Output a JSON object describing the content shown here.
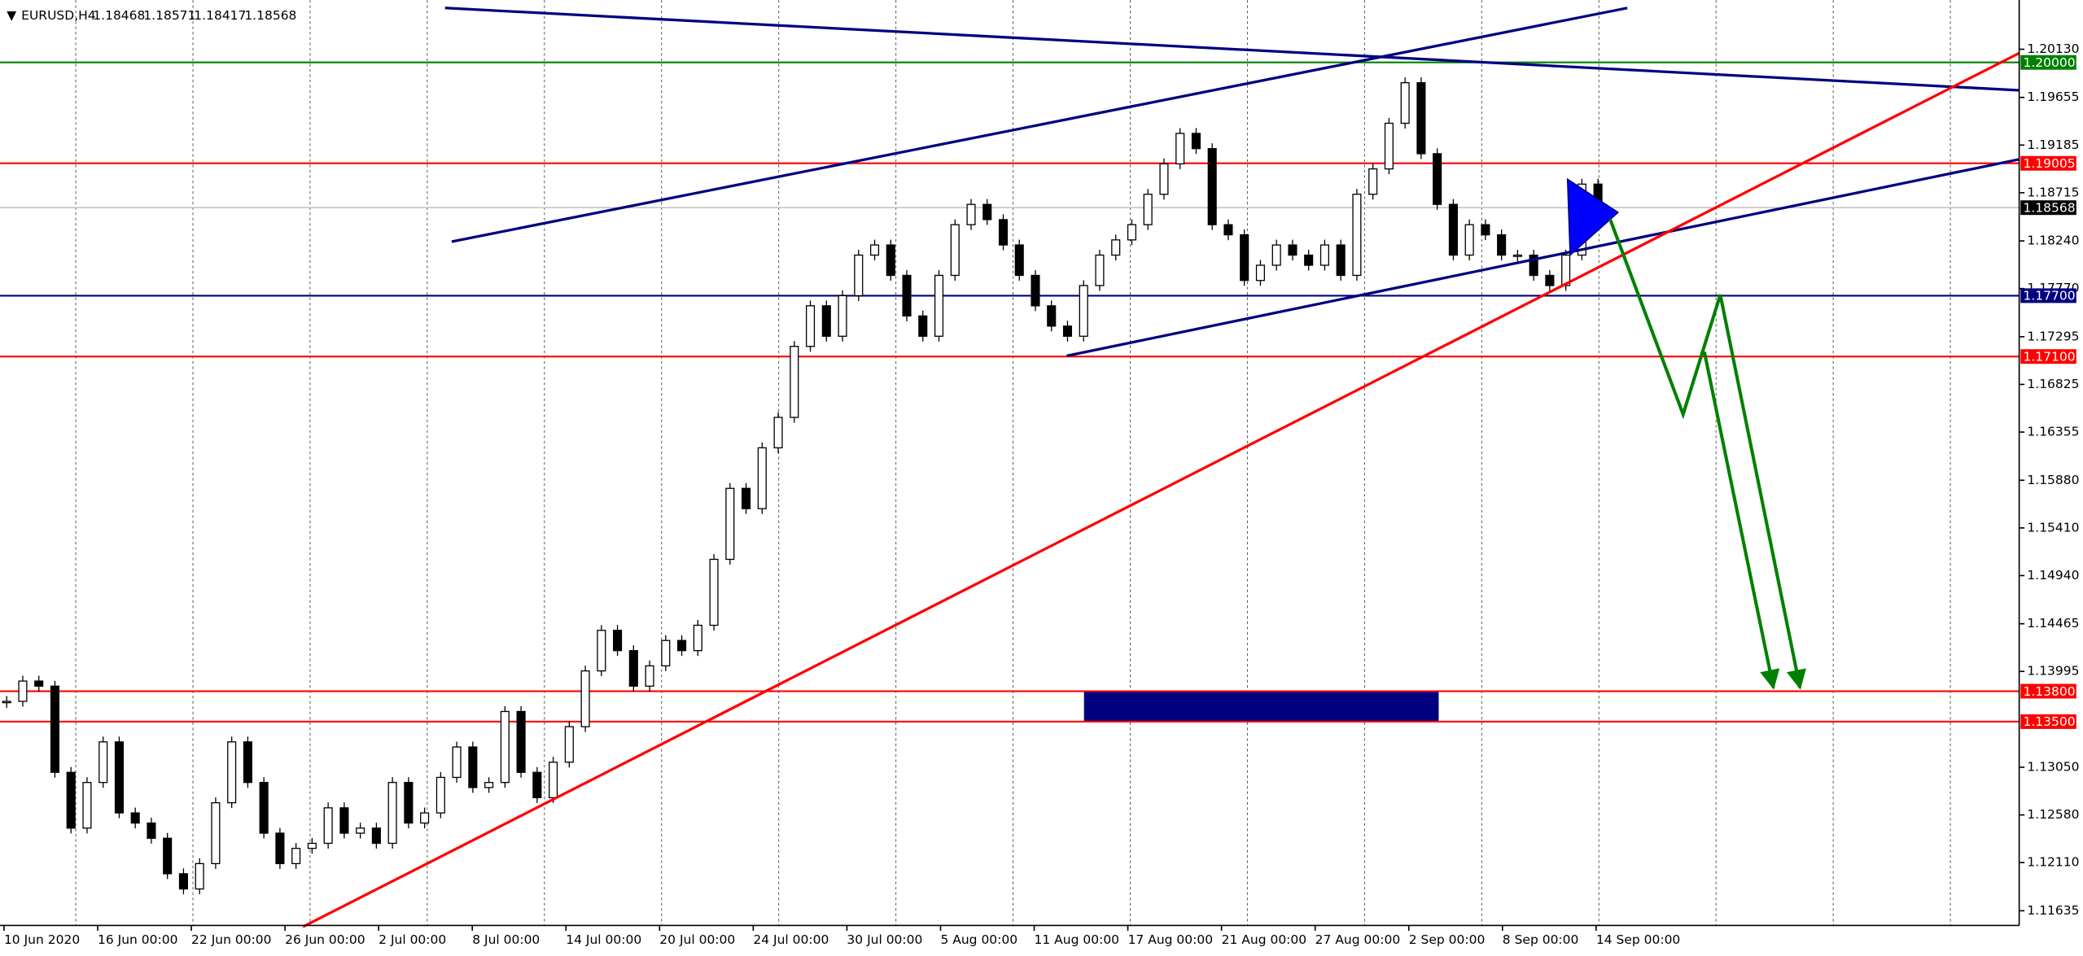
{
  "chart_data": {
    "type": "candlestick",
    "title": "EURUSD,H4",
    "ohlc": [
      1.18468,
      1.18571,
      1.18417,
      1.18568
    ],
    "values": [
      1.137,
      1.139,
      1.1385,
      1.13,
      1.1245,
      1.129,
      1.133,
      1.126,
      1.125,
      1.1235,
      1.12,
      1.1185,
      1.121,
      1.127,
      1.133,
      1.129,
      1.124,
      1.121,
      1.1225,
      1.123,
      1.1265,
      1.124,
      1.1245,
      1.123,
      1.129,
      1.125,
      1.126,
      1.1295,
      1.1325,
      1.1285,
      1.129,
      1.136,
      1.13,
      1.1275,
      1.131,
      1.1345,
      1.14,
      1.144,
      1.142,
      1.1385,
      1.1405,
      1.143,
      1.142,
      1.1445,
      1.151,
      1.158,
      1.156,
      1.162,
      1.165,
      1.172,
      1.176,
      1.173,
      1.177,
      1.181,
      1.182,
      1.179,
      1.175,
      1.173,
      1.179,
      1.184,
      1.186,
      1.1845,
      1.182,
      1.179,
      1.176,
      1.174,
      1.173,
      1.178,
      1.181,
      1.1825,
      1.184,
      1.187,
      1.19,
      1.193,
      1.1915,
      1.184,
      1.183,
      1.1785,
      1.18,
      1.182,
      1.181,
      1.18,
      1.182,
      1.179,
      1.187,
      1.1895,
      1.194,
      1.198,
      1.191,
      1.186,
      1.181,
      1.184,
      1.183,
      1.181,
      1.181,
      1.179,
      1.178,
      1.181,
      1.188,
      1.1855
    ],
    "x_labels": [
      "10 Jun 2020",
      "16 Jun 00:00",
      "22 Jun 00:00",
      "26 Jun 00:00",
      "2 Jul 00:00",
      "8 Jul 00:00",
      "14 Jul 00:00",
      "20 Jul 00:00",
      "24 Jul 00:00",
      "30 Jul 00:00",
      "5 Aug 00:00",
      "11 Aug 00:00",
      "17 Aug 00:00",
      "21 Aug 00:00",
      "27 Aug 00:00",
      "2 Sep 00:00",
      "8 Sep 00:00",
      "14 Sep 00:00"
    ],
    "ylim": [
      1.1149,
      1.2055
    ],
    "yticks": [
      {
        "value": 1.2013,
        "label": "1.20130"
      },
      1.19655,
      1.19185,
      1.18715,
      {
        "value": 1.1824,
        "label": "1.18240"
      },
      {
        "value": 1.1777,
        "label": "1.17770"
      },
      1.17295,
      1.16825,
      1.16355,
      {
        "value": 1.1588,
        "label": "1.15880"
      },
      {
        "value": 1.1541,
        "label": "1.15410"
      },
      {
        "value": 1.1494,
        "label": "1.14940"
      },
      1.14465,
      1.13995,
      {
        "value": 1.1305,
        "label": "1.13050"
      },
      {
        "value": 1.1258,
        "label": "1.12580"
      },
      {
        "value": 1.1211,
        "label": "1.12110"
      },
      1.11635
    ],
    "levels": [
      {
        "value": 1.2,
        "label": "1.20000",
        "color": "#008000"
      },
      {
        "value": 1.19005,
        "label": "1.19005",
        "color": "#ff0000"
      },
      {
        "value": 1.18568,
        "label": "1.18568",
        "color": "#000000"
      },
      {
        "value": 1.177,
        "label": "1.17700",
        "color": "#000080"
      },
      {
        "value": 1.171,
        "label": "1.17100",
        "color": "#ff0000"
      },
      {
        "value": 1.138,
        "label": "1.13800",
        "color": "#ff0000"
      },
      {
        "value": 1.135,
        "label": "1.13500",
        "color": "#ff0000"
      }
    ],
    "grid": true
  }
}
